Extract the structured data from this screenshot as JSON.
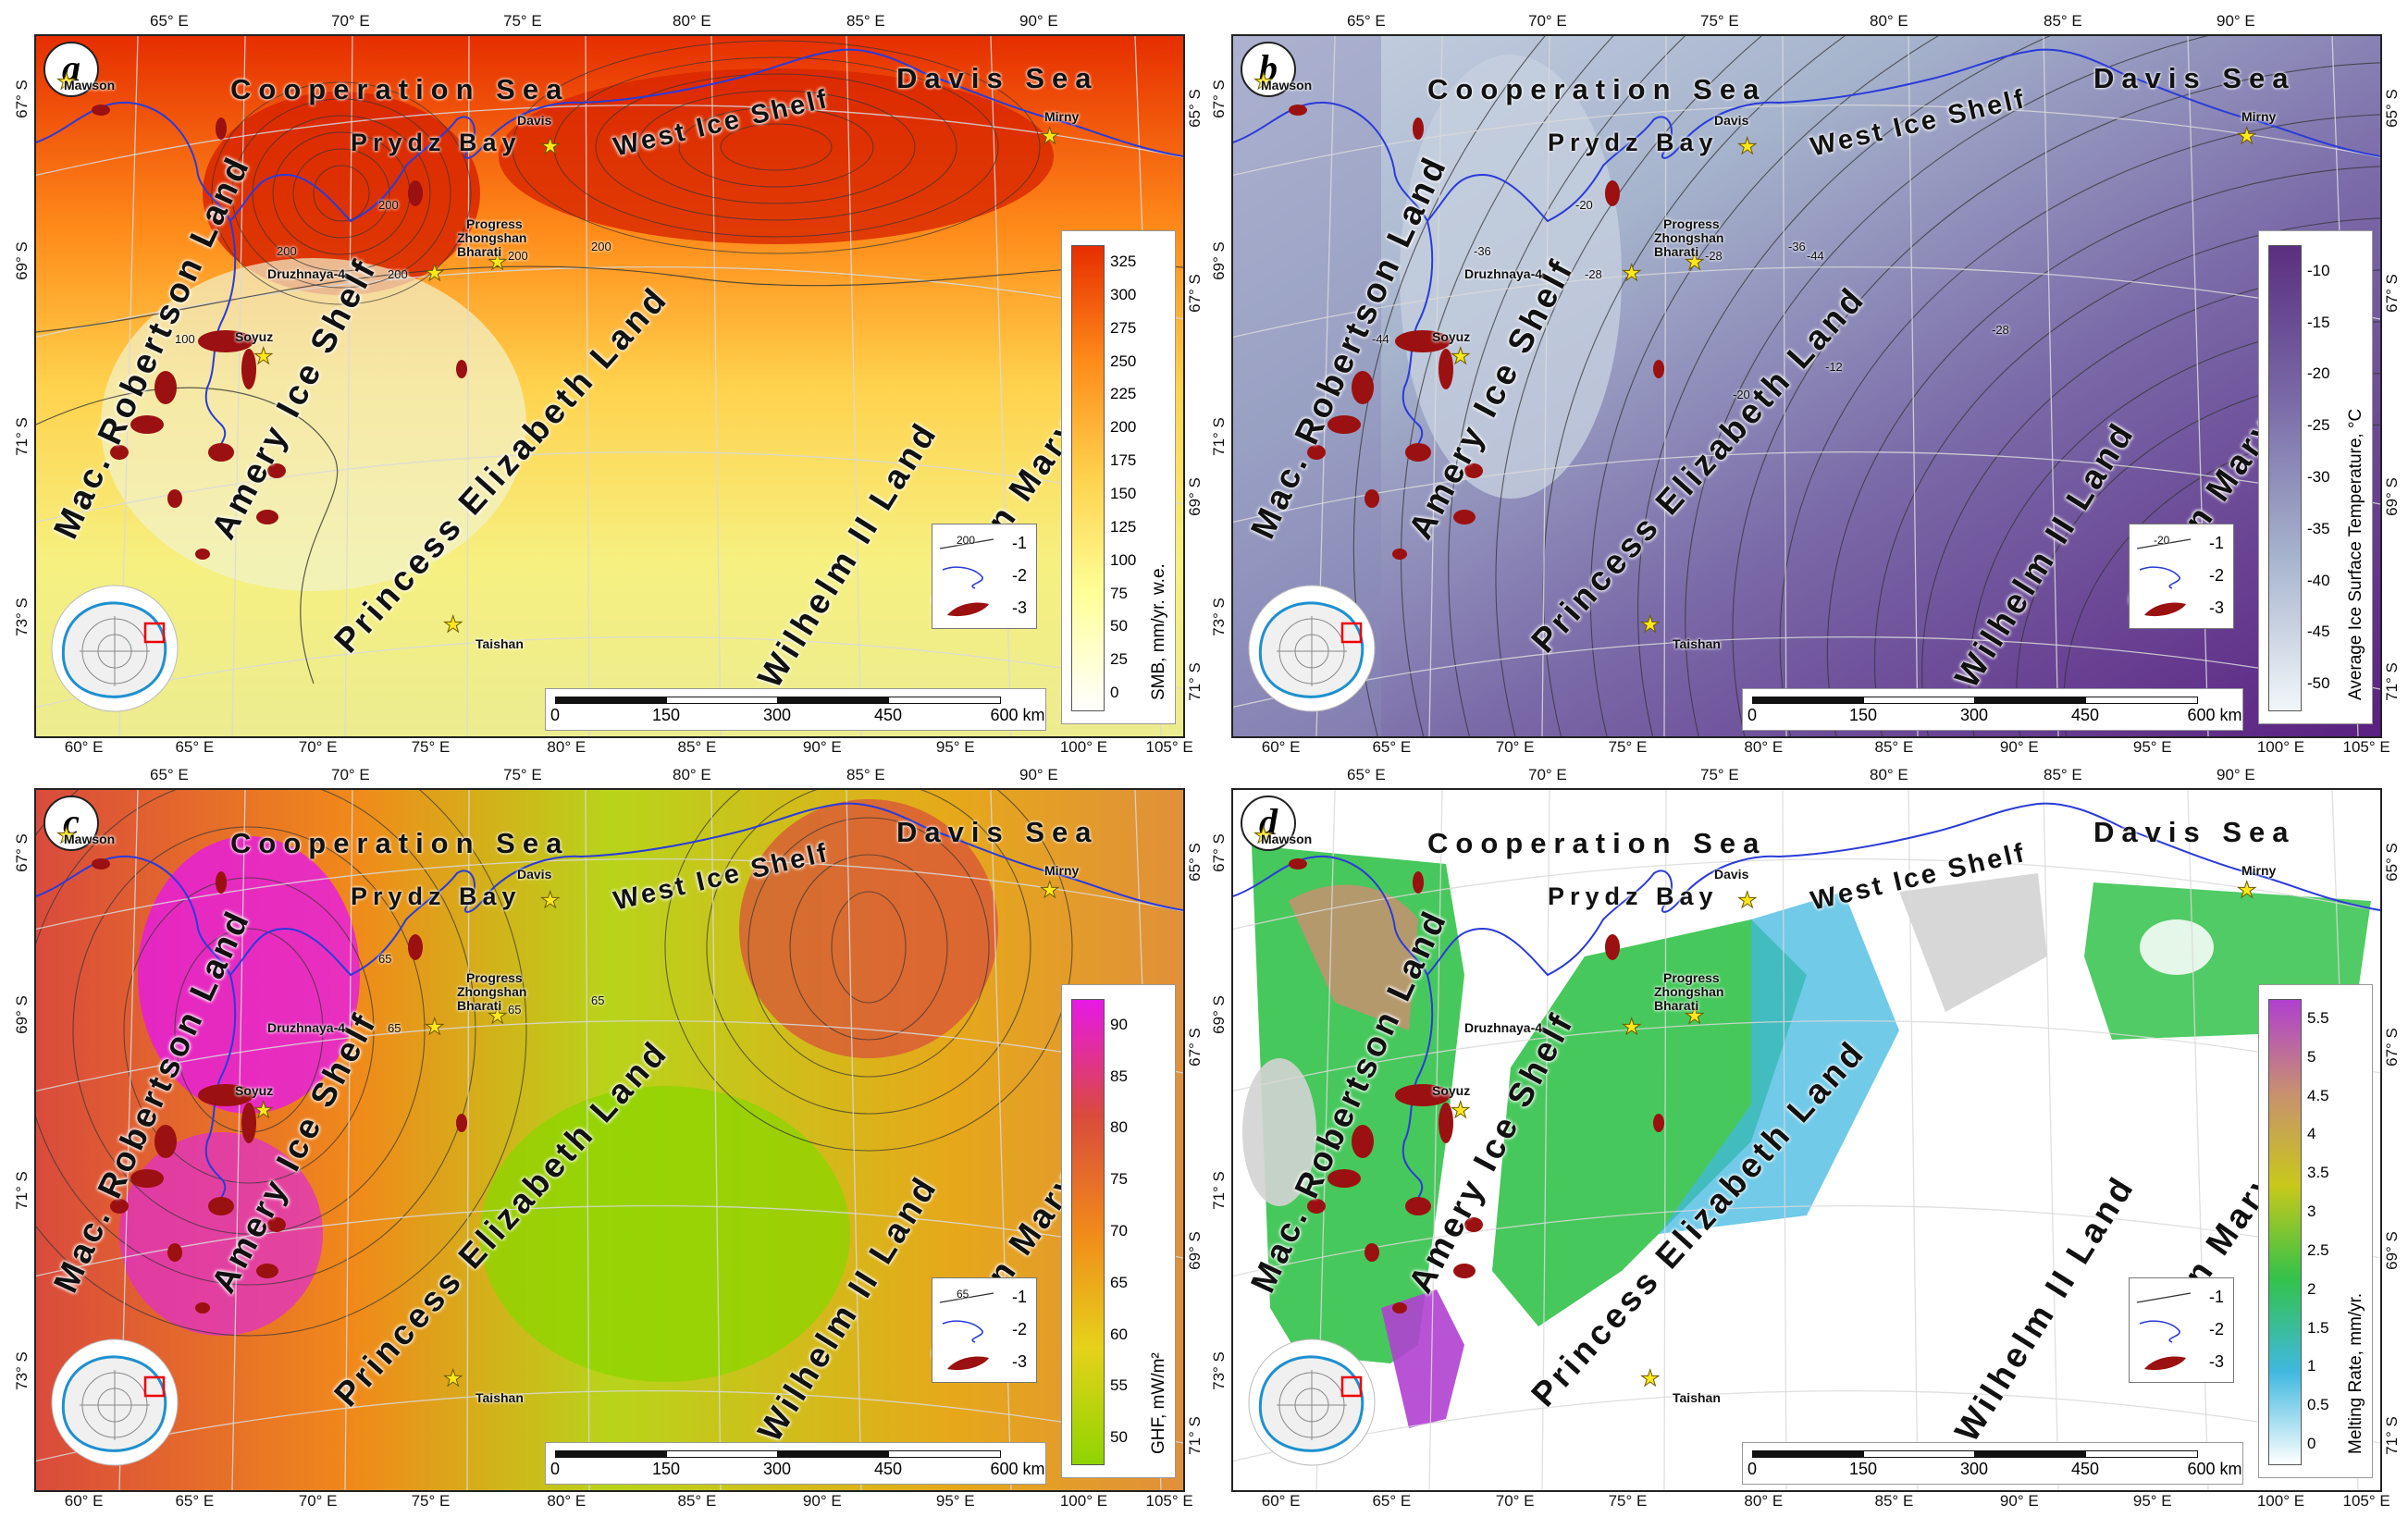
{
  "common": {
    "seas": {
      "cooperation": "Cooperation Sea",
      "davis": "Davis Sea",
      "prydz": "Prydz Bay",
      "west_ice_shelf": "West Ice Shelf"
    },
    "lands": {
      "mac_robertson": "Mac. Robertson Land",
      "amery": "Amery Ice Shelf",
      "princess": "Princess Elizabeth Land",
      "wilhelm": "Wilhelm II Land",
      "queen_mary": "Queen Mary Land"
    },
    "stations": {
      "mawson": "Mawson",
      "davis": "Davis",
      "progress": "Progress",
      "zhongshan": "Zhongshan",
      "bharati": "Bharati",
      "druzhnaya": "Druzhnaya-4",
      "soyuz": "Soyuz",
      "taishan": "Taishan",
      "mirny": "Mirny"
    },
    "top_lon": [
      "65° E",
      "70° E",
      "75° E",
      "80° E",
      "85° E",
      "90° E"
    ],
    "bottom_lon": [
      "60° E",
      "65° E",
      "70° E",
      "75° E",
      "80° E",
      "85° E",
      "90° E",
      "95° E",
      "100° E",
      "105° E"
    ],
    "left_lat": [
      "67° S",
      "69° S",
      "71° S",
      "73° S"
    ],
    "right_lat": [
      "65° S",
      "67° S",
      "69° S",
      "71° S"
    ],
    "scale_ticks": [
      "0",
      "150",
      "300",
      "450",
      "600 km"
    ],
    "legend": {
      "line1": "-1",
      "line2": "-2",
      "line3": "-3"
    }
  },
  "panels": [
    {
      "letter": "a",
      "cbar_title": "SMB, mm/yr. w.e.",
      "ticks": [
        "325",
        "300",
        "275",
        "250",
        "225",
        "200",
        "175",
        "150",
        "125",
        "100",
        "75",
        "50",
        "25",
        "0"
      ],
      "legend_contour": "200",
      "contour_labels": [
        "200",
        "200",
        "200",
        "200",
        "200",
        "100"
      ],
      "colors": [
        "#ffffff",
        "#ffff99",
        "#ffd24d",
        "#ff8c1a",
        "#e62e00"
      ]
    },
    {
      "letter": "b",
      "cbar_title": "Average Ice Surface Temperature, °C",
      "ticks": [
        "-10",
        "-15",
        "-20",
        "-25",
        "-30",
        "-35",
        "-40",
        "-45",
        "-50"
      ],
      "legend_contour": "-20",
      "contour_labels": [
        "-20",
        "-28",
        "-28",
        "-36",
        "-36",
        "-44",
        "-44",
        "-20",
        "-12",
        "-28"
      ],
      "colors": [
        "#f2f6fa",
        "#a5b3cc",
        "#7a6aa8",
        "#5a2f80"
      ]
    },
    {
      "letter": "c",
      "cbar_title": "GHF, mW/m²",
      "ticks": [
        "90",
        "85",
        "80",
        "75",
        "70",
        "65",
        "60",
        "55",
        "50"
      ],
      "legend_contour": "65",
      "contour_labels": [
        "65",
        "65",
        "65",
        "65"
      ],
      "colors": [
        "#8fd400",
        "#e6d21a",
        "#f08a1a",
        "#d94b3c",
        "#e619e6"
      ]
    },
    {
      "letter": "d",
      "cbar_title": "Melting Rate, mm/yr.",
      "ticks": [
        "5.5",
        "5",
        "4.5",
        "4",
        "3.5",
        "3",
        "2.5",
        "2",
        "1.5",
        "1",
        "0.5",
        "0"
      ],
      "legend_contour": "",
      "contour_labels": [],
      "colors": [
        "#ffffff",
        "#40b8e0",
        "#33c24a",
        "#c8c81a",
        "#c89070",
        "#b040d0"
      ]
    }
  ]
}
